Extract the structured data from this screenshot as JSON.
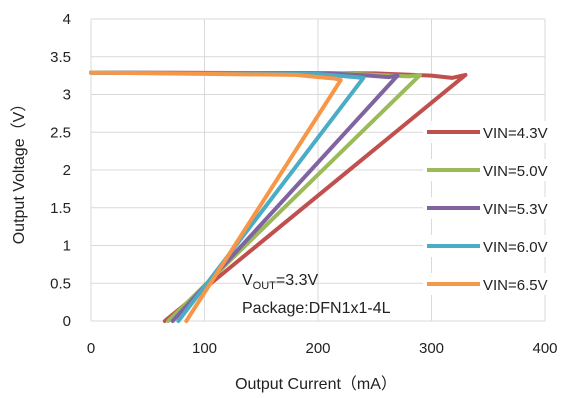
{
  "chart_data": {
    "type": "line",
    "title": "",
    "xlabel": "Output Current（mA）",
    "ylabel": "Output Voltage（V）",
    "xlim": [
      0,
      400
    ],
    "ylim": [
      0,
      4
    ],
    "xticks": [
      "0",
      "100",
      "200",
      "300",
      "400"
    ],
    "yticks": [
      "0",
      "0.5",
      "1",
      "1.5",
      "2",
      "2.5",
      "3",
      "3.5",
      "4"
    ],
    "grid": true,
    "legend_position": "right",
    "annotation": {
      "vout_prefix": "V",
      "vout_sub": "OUT",
      "vout_value": "=3.3V",
      "package": "Package:DFN1x1-4L"
    },
    "series": [
      {
        "name": "VIN=4.3V",
        "color": "#c0504d",
        "points": [
          [
            0,
            3.29
          ],
          [
            250,
            3.28
          ],
          [
            300,
            3.25
          ],
          [
            318,
            3.22
          ],
          [
            324,
            3.24
          ],
          [
            330,
            3.26
          ],
          [
            65,
            0.0
          ]
        ]
      },
      {
        "name": "VIN=5.0V",
        "color": "#9bbb59",
        "points": [
          [
            0,
            3.29
          ],
          [
            220,
            3.28
          ],
          [
            265,
            3.25
          ],
          [
            280,
            3.24
          ],
          [
            290,
            3.26
          ],
          [
            68,
            0.0
          ]
        ]
      },
      {
        "name": "VIN=5.3V",
        "color": "#8064a2",
        "points": [
          [
            0,
            3.29
          ],
          [
            210,
            3.28
          ],
          [
            245,
            3.25
          ],
          [
            262,
            3.23
          ],
          [
            270,
            3.25
          ],
          [
            72,
            0.0
          ]
        ]
      },
      {
        "name": "VIN=6.0V",
        "color": "#4bacc6",
        "points": [
          [
            0,
            3.29
          ],
          [
            200,
            3.27
          ],
          [
            225,
            3.24
          ],
          [
            240,
            3.22
          ],
          [
            77,
            0.0
          ]
        ]
      },
      {
        "name": "VIN=6.5V",
        "color": "#f79646",
        "points": [
          [
            0,
            3.29
          ],
          [
            180,
            3.26
          ],
          [
            215,
            3.21
          ],
          [
            220,
            3.19
          ],
          [
            84,
            0.0
          ]
        ]
      }
    ]
  }
}
